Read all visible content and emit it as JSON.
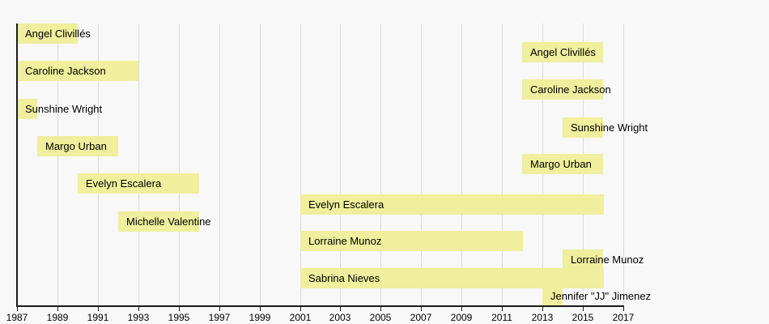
{
  "chart_data": {
    "type": "bar",
    "subtype": "timeline-membership",
    "title": "",
    "xlabel": "",
    "ylabel": "",
    "x_axis": {
      "min": 1987,
      "max": 2017,
      "tick_interval": 2,
      "tick_labels": [
        "1987",
        "1989",
        "1991",
        "1993",
        "1995",
        "1997",
        "1999",
        "2001",
        "2003",
        "2005",
        "2007",
        "2009",
        "2011",
        "2013",
        "2015",
        "2017"
      ]
    },
    "grid": true,
    "legend_position": "none",
    "bars": [
      {
        "label": "Angel Clivillés",
        "start": 1987,
        "end": 1990
      },
      {
        "label": "Angel Clivillés",
        "start": 2012,
        "end": 2016
      },
      {
        "label": "Caroline Jackson",
        "start": 1987,
        "end": 1993
      },
      {
        "label": "Caroline Jackson",
        "start": 2012,
        "end": 2016
      },
      {
        "label": "Sunshine Wright",
        "start": 1987,
        "end": 1988
      },
      {
        "label": "Sunshine Wright",
        "start": 2014,
        "end": 2016
      },
      {
        "label": "Margo Urban",
        "start": 1988,
        "end": 1992
      },
      {
        "label": "Margo Urban",
        "start": 2012,
        "end": 2016
      },
      {
        "label": "Evelyn Escalera",
        "start": 1990,
        "end": 1996
      },
      {
        "label": "Evelyn Escalera",
        "start": 2001,
        "end": 2016
      },
      {
        "label": "Michelle Valentine",
        "start": 1992,
        "end": 1996
      },
      {
        "label": "Lorraine Munoz",
        "start": 2001,
        "end": 2012
      },
      {
        "label": "Lorraine Munoz",
        "start": 2014,
        "end": 2016
      },
      {
        "label": "Sabrina Nieves",
        "start": 2001,
        "end": 2016
      },
      {
        "label": "Jennifer \"JJ\" Jimenez",
        "start": 2013,
        "end": 2014
      }
    ],
    "colors": {
      "bar_fill": "#efef9d",
      "background": "#f8f8f8",
      "gridline": "#dadada",
      "axis": "#1a1a1a",
      "text": "#000000"
    }
  }
}
